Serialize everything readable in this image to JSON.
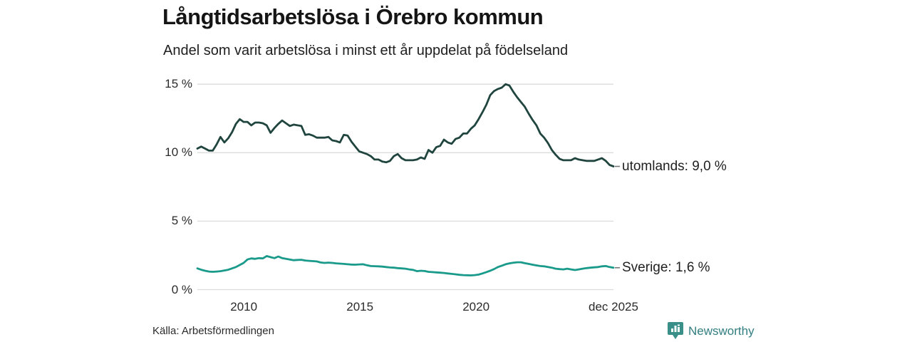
{
  "title": "Långtidsarbetslösa i Örebro kommun",
  "subtitle": "Andel som varit arbetslösa i minst ett år uppdelat på födelseland",
  "source": {
    "text": "Källa: Arbetsförmedlingen"
  },
  "branding": {
    "name": "Newsworthy",
    "icon": "bar-chart-bubble-icon",
    "icon_color": "#3a8f89",
    "text_color": "#337e80"
  },
  "chart_data": {
    "type": "line",
    "title": "Långtidsarbetslösa i Örebro kommun",
    "subtitle": "Andel som varit arbetslösa i minst ett år uppdelat på födelseland",
    "x_start": "jan 2008",
    "x_end": "dec 2025",
    "months_total": 215,
    "x_ticks": [
      {
        "label": "2010",
        "month": 24
      },
      {
        "label": "2015",
        "month": 84
      },
      {
        "label": "2020",
        "month": 144
      },
      {
        "label": "dec 2025",
        "month": 215
      }
    ],
    "y_ticks": [
      {
        "label": "0 %",
        "value": 0
      },
      {
        "label": "5 %",
        "value": 5
      },
      {
        "label": "10 %",
        "value": 10
      },
      {
        "label": "15 %",
        "value": 15
      }
    ],
    "ylim": [
      0,
      15
    ],
    "grid": true,
    "gridline_color": "#dcdcdc",
    "end_dash_color": "#777777",
    "legend_position": "right-end-labels",
    "series": [
      {
        "name": "utomlands",
        "end_label": "utomlands: 9,0 %",
        "last_value": "9,0 %",
        "color": "#20453e",
        "values": [
          10.3,
          10.45,
          10.3,
          10.15,
          10.15,
          10.6,
          11.15,
          10.75,
          11.05,
          11.5,
          12.1,
          12.45,
          12.25,
          12.25,
          12.0,
          12.2,
          12.2,
          12.15,
          12.0,
          11.45,
          11.8,
          12.1,
          12.35,
          12.15,
          11.95,
          12.05,
          12.0,
          11.95,
          11.3,
          11.35,
          11.25,
          11.1,
          11.1,
          11.1,
          11.15,
          10.9,
          10.85,
          10.75,
          11.3,
          11.25,
          10.8,
          10.45,
          10.1,
          10.0,
          9.9,
          9.75,
          9.5,
          9.5,
          9.35,
          9.3,
          9.4,
          9.75,
          9.9,
          9.6,
          9.45,
          9.45,
          9.45,
          9.5,
          9.65,
          9.55,
          10.2,
          10.0,
          10.4,
          10.5,
          10.95,
          10.75,
          10.65,
          11.0,
          11.1,
          11.4,
          11.4,
          11.75,
          12.0,
          12.45,
          12.95,
          13.5,
          14.2,
          14.5,
          14.65,
          14.75,
          15.0,
          14.9,
          14.45,
          14.05,
          13.7,
          13.35,
          12.85,
          12.4,
          12.0,
          11.4,
          11.1,
          10.7,
          10.2,
          9.85,
          9.55,
          9.45,
          9.45,
          9.45,
          9.6,
          9.5,
          9.45,
          9.4,
          9.4,
          9.4,
          9.5,
          9.6,
          9.4,
          9.1,
          9.0
        ]
      },
      {
        "name": "Sverige",
        "end_label": "Sverige: 1,6 %",
        "last_value": "1,6 %",
        "color": "#1a9a8a",
        "values": [
          1.55,
          1.45,
          1.38,
          1.32,
          1.3,
          1.32,
          1.35,
          1.4,
          1.45,
          1.55,
          1.65,
          1.8,
          1.95,
          2.2,
          2.28,
          2.25,
          2.3,
          2.28,
          2.45,
          2.37,
          2.3,
          2.42,
          2.3,
          2.25,
          2.2,
          2.15,
          2.17,
          2.18,
          2.13,
          2.1,
          2.08,
          2.06,
          1.98,
          1.95,
          1.97,
          1.95,
          1.92,
          1.9,
          1.88,
          1.85,
          1.83,
          1.82,
          1.84,
          1.85,
          1.78,
          1.72,
          1.71,
          1.7,
          1.68,
          1.65,
          1.62,
          1.6,
          1.57,
          1.55,
          1.53,
          1.48,
          1.44,
          1.35,
          1.38,
          1.36,
          1.3,
          1.28,
          1.26,
          1.24,
          1.22,
          1.18,
          1.15,
          1.12,
          1.08,
          1.06,
          1.05,
          1.04,
          1.06,
          1.1,
          1.18,
          1.28,
          1.38,
          1.5,
          1.65,
          1.75,
          1.85,
          1.92,
          1.96,
          2.0,
          2.0,
          1.93,
          1.88,
          1.82,
          1.77,
          1.72,
          1.7,
          1.65,
          1.6,
          1.53,
          1.5,
          1.48,
          1.53,
          1.48,
          1.43,
          1.48,
          1.53,
          1.57,
          1.6,
          1.63,
          1.65,
          1.7,
          1.72,
          1.65,
          1.6
        ]
      }
    ]
  }
}
